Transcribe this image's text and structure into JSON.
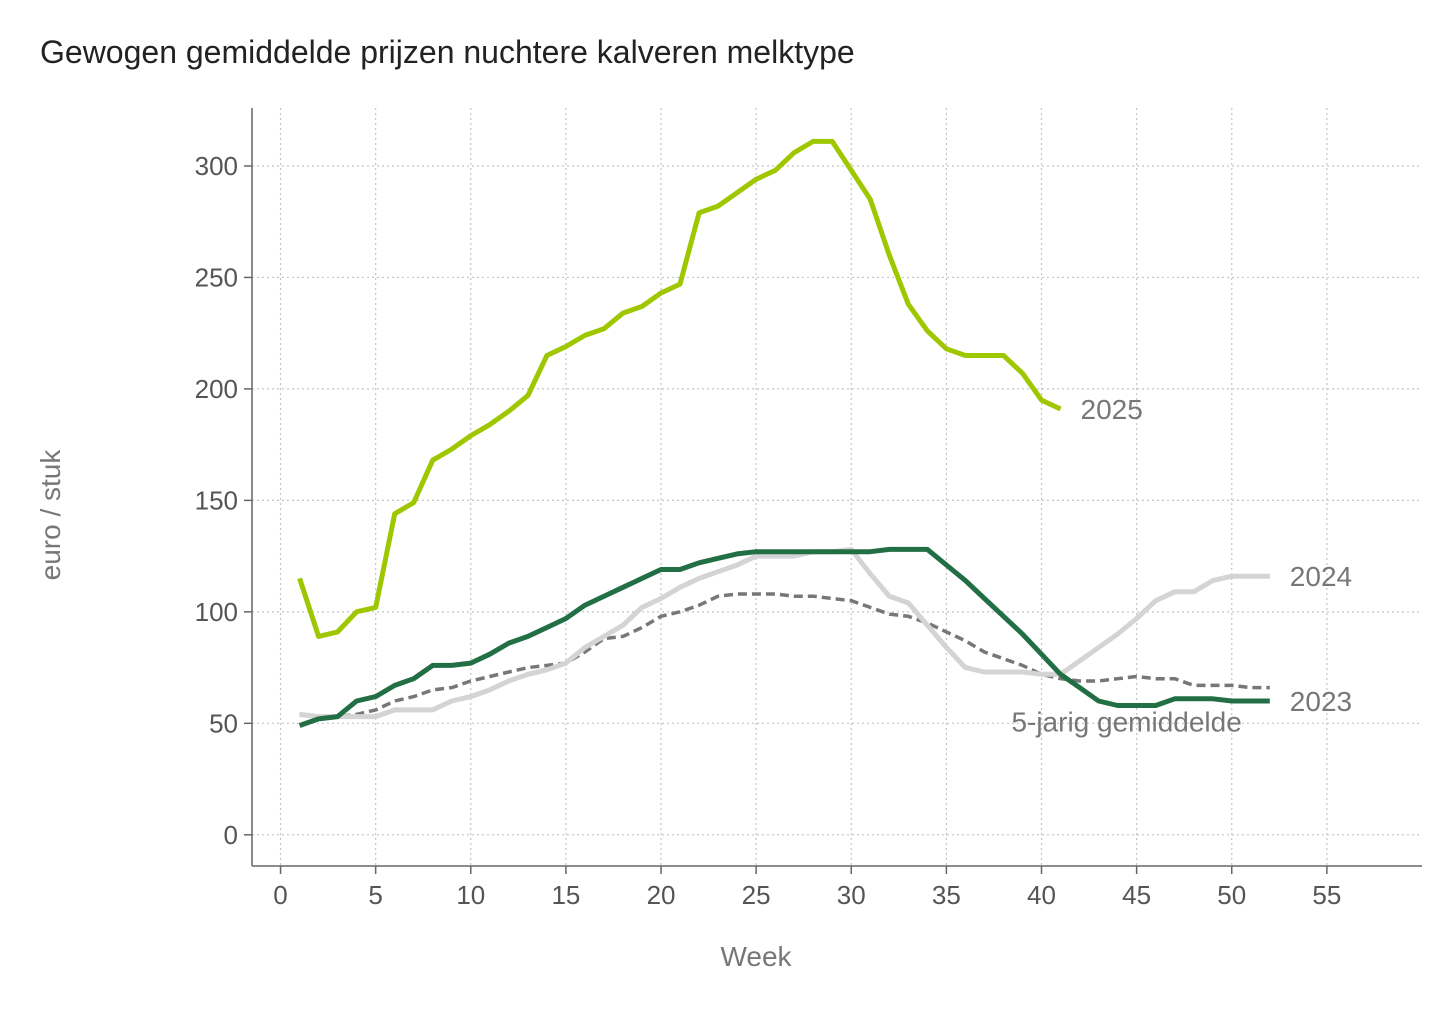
{
  "title": "Gewogen gemiddelde prijzen nuchtere kalveren melktype",
  "chart_data": {
    "type": "line",
    "title": "Gewogen gemiddelde prijzen nuchtere kalveren melktype",
    "xlabel": "Week",
    "ylabel": "euro / stuk",
    "xlim": [
      -1.5,
      60
    ],
    "ylim": [
      -14,
      326
    ],
    "xticks": [
      0,
      5,
      10,
      15,
      20,
      25,
      30,
      35,
      40,
      45,
      50,
      55
    ],
    "yticks": [
      0,
      50,
      100,
      150,
      200,
      250,
      300
    ],
    "grid": true,
    "legend": "direct labels at line ends",
    "series": [
      {
        "name": "2025",
        "color": "#9fc700",
        "dashed": false,
        "x": [
          1,
          2,
          3,
          4,
          5,
          6,
          7,
          8,
          9,
          10,
          11,
          12,
          13,
          14,
          15,
          16,
          17,
          18,
          19,
          20,
          21,
          22,
          23,
          24,
          25,
          26,
          27,
          28,
          29,
          30,
          31,
          32,
          33,
          34,
          35,
          36,
          37,
          38,
          39,
          40,
          41
        ],
        "values": [
          115,
          89,
          91,
          100,
          102,
          144,
          149,
          168,
          173,
          179,
          184,
          190,
          197,
          215,
          219,
          224,
          227,
          234,
          237,
          243,
          247,
          279,
          282,
          288,
          294,
          298,
          306,
          311,
          311,
          298,
          285,
          260,
          238,
          226,
          218,
          215,
          215,
          215,
          207,
          195,
          191
        ]
      },
      {
        "name": "2024",
        "color": "#d4d4d4",
        "dashed": false,
        "x": [
          1,
          2,
          3,
          4,
          5,
          6,
          7,
          8,
          9,
          10,
          11,
          12,
          13,
          14,
          15,
          16,
          17,
          18,
          19,
          20,
          21,
          22,
          23,
          24,
          25,
          26,
          27,
          28,
          29,
          30,
          31,
          32,
          33,
          34,
          35,
          36,
          37,
          38,
          39,
          40,
          41,
          42,
          43,
          44,
          45,
          46,
          47,
          48,
          49,
          50,
          51,
          52
        ],
        "values": [
          54,
          53,
          53,
          53,
          53,
          56,
          56,
          56,
          60,
          62,
          65,
          69,
          72,
          74,
          77,
          84,
          89,
          94,
          102,
          106,
          111,
          115,
          118,
          121,
          125,
          125,
          125,
          127,
          127,
          128,
          117,
          107,
          104,
          94,
          84,
          75,
          73,
          73,
          73,
          72,
          72,
          78,
          84,
          90,
          97,
          105,
          109,
          109,
          114,
          116,
          116,
          116
        ]
      },
      {
        "name": "2023",
        "color": "#236f45",
        "dashed": false,
        "x": [
          1,
          2,
          3,
          4,
          5,
          6,
          7,
          8,
          9,
          10,
          11,
          12,
          13,
          14,
          15,
          16,
          17,
          18,
          19,
          20,
          21,
          22,
          23,
          24,
          25,
          26,
          27,
          28,
          29,
          30,
          31,
          32,
          33,
          34,
          35,
          36,
          37,
          38,
          39,
          40,
          41,
          42,
          43,
          44,
          45,
          46,
          47,
          48,
          49,
          50,
          51,
          52
        ],
        "values": [
          49,
          52,
          53,
          60,
          62,
          67,
          70,
          76,
          76,
          77,
          81,
          86,
          89,
          93,
          97,
          103,
          107,
          111,
          115,
          119,
          119,
          122,
          124,
          126,
          127,
          127,
          127,
          127,
          127,
          127,
          127,
          128,
          128,
          128,
          121,
          114,
          106,
          98,
          90,
          81,
          72,
          66,
          60,
          58,
          58,
          58,
          61,
          61,
          61,
          60,
          60,
          60
        ]
      },
      {
        "name": "5-jarig gemiddelde",
        "color": "#777777",
        "dashed": true,
        "x": [
          1,
          2,
          3,
          4,
          5,
          6,
          7,
          8,
          9,
          10,
          11,
          12,
          13,
          14,
          15,
          16,
          17,
          18,
          19,
          20,
          21,
          22,
          23,
          24,
          25,
          26,
          27,
          28,
          29,
          30,
          31,
          32,
          33,
          34,
          35,
          36,
          37,
          38,
          39,
          40,
          41,
          42,
          43,
          44,
          45,
          46,
          47,
          48,
          49,
          50,
          51,
          52
        ],
        "values": [
          54,
          53,
          53,
          54,
          56,
          60,
          62,
          65,
          66,
          69,
          71,
          73,
          75,
          76,
          77,
          82,
          88,
          89,
          93,
          98,
          100,
          103,
          107,
          108,
          108,
          108,
          107,
          107,
          106,
          105,
          102,
          99,
          98,
          95,
          91,
          87,
          82,
          79,
          76,
          72,
          70,
          69,
          69,
          70,
          71,
          70,
          70,
          67,
          67,
          67,
          66,
          66
        ]
      }
    ]
  }
}
